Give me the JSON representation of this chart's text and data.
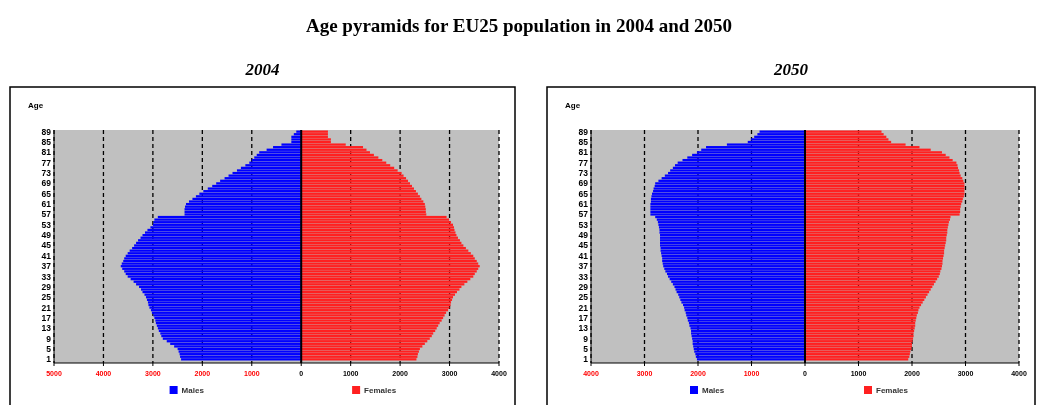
{
  "chart_data": [
    {
      "type": "bar",
      "orientation": "horizontal",
      "stacked": true,
      "title": "Age pyramids for EU25 population in 2004 and 2050",
      "subtitle": "2004",
      "ylabel": "Age",
      "categories": [
        "89",
        null,
        null,
        null,
        "85",
        null,
        null,
        null,
        "81",
        null,
        null,
        null,
        "77",
        null,
        null,
        null,
        "73",
        null,
        null,
        null,
        "69",
        null,
        null,
        null,
        "65",
        null,
        null,
        null,
        "61",
        null,
        null,
        null,
        "57",
        null,
        null,
        null,
        "53",
        null,
        null,
        null,
        "49",
        null,
        null,
        null,
        "45",
        null,
        null,
        null,
        "41",
        null,
        null,
        null,
        "37",
        null,
        null,
        null,
        "33",
        null,
        null,
        null,
        "29",
        null,
        null,
        null,
        "25",
        null,
        null,
        null,
        "21",
        null,
        null,
        null,
        "17",
        null,
        null,
        null,
        "13",
        null,
        null,
        null,
        "9",
        null,
        null,
        null,
        "5",
        null,
        null,
        null,
        "1"
      ],
      "series": [
        {
          "name": "Males",
          "color": "#0000ff",
          "values": [
            -100,
            -150,
            -200,
            -200,
            -200,
            -400,
            -570,
            -700,
            -850,
            -900,
            -950,
            -1000,
            -1050,
            -1130,
            -1220,
            -1300,
            -1390,
            -1470,
            -1550,
            -1640,
            -1720,
            -1800,
            -1890,
            -1980,
            -2060,
            -2130,
            -2200,
            -2270,
            -2330,
            -2350,
            -2360,
            -2360,
            -2360,
            -2900,
            -2970,
            -2990,
            -3000,
            -3050,
            -3110,
            -3160,
            -3210,
            -3250,
            -3300,
            -3340,
            -3380,
            -3420,
            -3470,
            -3510,
            -3550,
            -3580,
            -3600,
            -3630,
            -3650,
            -3620,
            -3580,
            -3550,
            -3510,
            -3450,
            -3390,
            -3340,
            -3280,
            -3240,
            -3210,
            -3170,
            -3140,
            -3120,
            -3100,
            -3090,
            -3070,
            -3040,
            -3020,
            -2990,
            -2970,
            -2950,
            -2940,
            -2920,
            -2900,
            -2880,
            -2850,
            -2830,
            -2800,
            -2720,
            -2650,
            -2570,
            -2500,
            -2480,
            -2460,
            -2450,
            -2430
          ]
        },
        {
          "name": "Females",
          "color": "#ff2020",
          "values": [
            540,
            540,
            540,
            600,
            600,
            900,
            1250,
            1320,
            1390,
            1470,
            1560,
            1640,
            1720,
            1800,
            1880,
            1950,
            2030,
            2070,
            2120,
            2160,
            2200,
            2240,
            2280,
            2320,
            2360,
            2400,
            2430,
            2470,
            2500,
            2510,
            2520,
            2520,
            2530,
            2940,
            2990,
            3030,
            3070,
            3090,
            3100,
            3120,
            3140,
            3170,
            3210,
            3240,
            3280,
            3330,
            3380,
            3430,
            3480,
            3510,
            3550,
            3580,
            3610,
            3580,
            3550,
            3510,
            3480,
            3420,
            3360,
            3300,
            3240,
            3200,
            3150,
            3110,
            3070,
            3050,
            3030,
            3020,
            3000,
            2970,
            2930,
            2900,
            2870,
            2840,
            2800,
            2770,
            2740,
            2710,
            2670,
            2640,
            2600,
            2550,
            2500,
            2450,
            2400,
            2380,
            2360,
            2350,
            2330
          ]
        }
      ],
      "xlim": [
        -5000,
        4000
      ],
      "xticks": [
        {
          "value": -5000,
          "label": "5000"
        },
        {
          "value": -4000,
          "label": "4000"
        },
        {
          "value": -3000,
          "label": "3000"
        },
        {
          "value": -2000,
          "label": "2000"
        },
        {
          "value": -1000,
          "label": "1000"
        },
        0,
        1000,
        2000,
        3000,
        4000
      ],
      "grid": "x",
      "legend": "bottom"
    },
    {
      "type": "bar",
      "orientation": "horizontal",
      "stacked": true,
      "title": "2050",
      "ylabel": "Age",
      "categories": [
        "89",
        null,
        null,
        null,
        "85",
        null,
        null,
        null,
        "81",
        null,
        null,
        null,
        "77",
        null,
        null,
        null,
        "73",
        null,
        null,
        null,
        "69",
        null,
        null,
        null,
        "65",
        null,
        null,
        null,
        "61",
        null,
        null,
        null,
        "57",
        null,
        null,
        null,
        "53",
        null,
        null,
        null,
        "49",
        null,
        null,
        null,
        "45",
        null,
        null,
        null,
        "41",
        null,
        null,
        null,
        "37",
        null,
        null,
        null,
        "33",
        null,
        null,
        null,
        "29",
        null,
        null,
        null,
        "25",
        null,
        null,
        null,
        "21",
        null,
        null,
        null,
        "17",
        null,
        null,
        null,
        "13",
        null,
        null,
        null,
        "9",
        null,
        null,
        null,
        "5",
        null,
        null,
        null,
        "1"
      ],
      "series": [
        {
          "name": "Males",
          "color": "#0000ff",
          "values": [
            -850,
            -890,
            -950,
            -1010,
            -1070,
            -1460,
            -1850,
            -1940,
            -2020,
            -2110,
            -2200,
            -2290,
            -2380,
            -2430,
            -2470,
            -2520,
            -2560,
            -2620,
            -2680,
            -2740,
            -2800,
            -2810,
            -2830,
            -2840,
            -2860,
            -2870,
            -2880,
            -2880,
            -2890,
            -2890,
            -2890,
            -2890,
            -2890,
            -2800,
            -2770,
            -2750,
            -2740,
            -2730,
            -2720,
            -2720,
            -2710,
            -2710,
            -2710,
            -2710,
            -2710,
            -2700,
            -2700,
            -2690,
            -2680,
            -2670,
            -2670,
            -2660,
            -2650,
            -2630,
            -2610,
            -2580,
            -2560,
            -2530,
            -2500,
            -2470,
            -2440,
            -2420,
            -2400,
            -2370,
            -2350,
            -2330,
            -2310,
            -2280,
            -2260,
            -2250,
            -2230,
            -2220,
            -2200,
            -2190,
            -2170,
            -2160,
            -2140,
            -2130,
            -2130,
            -2120,
            -2110,
            -2100,
            -2100,
            -2090,
            -2080,
            -2070,
            -2050,
            -2040,
            -2020
          ]
        },
        {
          "name": "Females",
          "color": "#ff2020",
          "values": [
            1430,
            1470,
            1520,
            1560,
            1610,
            1880,
            2140,
            2350,
            2560,
            2630,
            2700,
            2760,
            2830,
            2850,
            2860,
            2880,
            2890,
            2910,
            2940,
            2960,
            2980,
            2980,
            2980,
            2980,
            2980,
            2970,
            2950,
            2940,
            2920,
            2910,
            2900,
            2900,
            2890,
            2720,
            2710,
            2690,
            2680,
            2670,
            2660,
            2660,
            2650,
            2640,
            2640,
            2630,
            2620,
            2610,
            2600,
            2600,
            2590,
            2580,
            2570,
            2570,
            2560,
            2550,
            2530,
            2520,
            2500,
            2470,
            2440,
            2410,
            2380,
            2350,
            2320,
            2290,
            2260,
            2230,
            2200,
            2170,
            2140,
            2120,
            2110,
            2090,
            2080,
            2070,
            2060,
            2060,
            2050,
            2040,
            2030,
            2030,
            2020,
            2010,
            2000,
            2000,
            1990,
            1970,
            1960,
            1950,
            1930
          ]
        }
      ],
      "xlim": [
        -4000,
        4000
      ],
      "xticks": [
        {
          "value": -4000,
          "label": "4000"
        },
        {
          "value": -3000,
          "label": "3000"
        },
        {
          "value": -2000,
          "label": "2000"
        },
        {
          "value": -1000,
          "label": "1000"
        },
        0,
        1000,
        2000,
        3000,
        4000
      ],
      "grid": "x",
      "legend": "bottom"
    }
  ]
}
